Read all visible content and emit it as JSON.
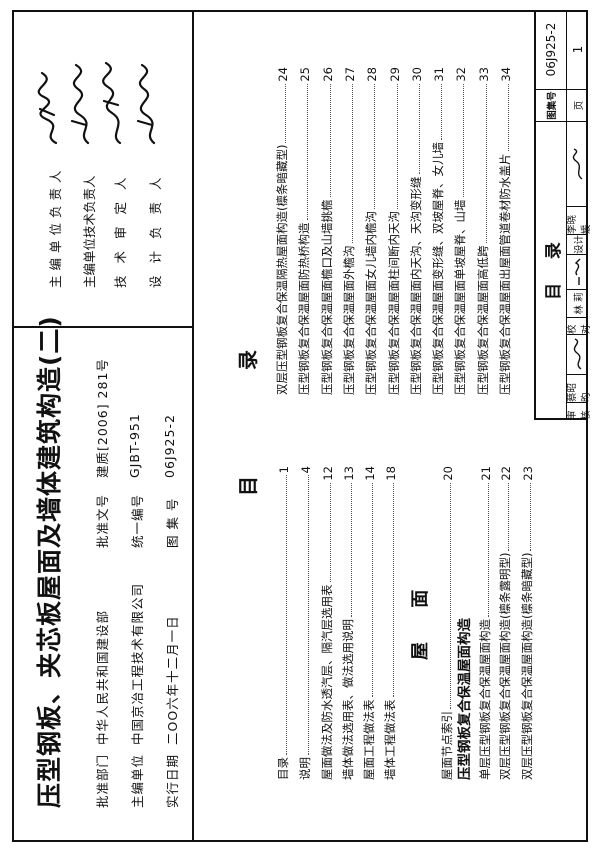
{
  "cover": {
    "title": "压型钢板、夹芯板屋面及墙体建筑构造(二)",
    "info": [
      {
        "label": "批准部门",
        "value": "中华人民共和国建设部"
      },
      {
        "label": "主编单位",
        "value": "中国京冶工程技术有限公司"
      },
      {
        "label": "实行日期",
        "value": "二OO六年十二月一日"
      }
    ],
    "info_right": [
      {
        "label": "批准文号",
        "value": "建质[2006] 281号"
      },
      {
        "label": "统一编号",
        "value": "GJBT-951"
      },
      {
        "label": "图 集 号",
        "value": "06J925-2"
      }
    ]
  },
  "signatures": {
    "roles": [
      "主编单位负责人",
      "主编单位技术负责人",
      "技术审定人",
      "设计负责人"
    ]
  },
  "toc": {
    "heading_left": "目",
    "heading_right": "录",
    "left_column": [
      {
        "text": "目录",
        "page": "1"
      },
      {
        "text": "说明",
        "page": "4"
      },
      {
        "text": "屋面做法及防水透汽层、隔汽层选用表",
        "page": "12"
      },
      {
        "text": "墙体做法选用表、做法选用说明",
        "page": "13"
      },
      {
        "text": "屋面工程做法表",
        "page": "14"
      },
      {
        "text": "墙体工程做法表",
        "page": "18"
      }
    ],
    "section_heading": "屋 面",
    "left_column_2": [
      {
        "text": "屋面节点索引",
        "page": "20"
      },
      {
        "text": "压型钢板复合保温屋面构造",
        "page": ""
      },
      {
        "text": "单层压型钢板复合保温屋面构造",
        "page": "21"
      },
      {
        "text": "双层压型钢板复合保温屋面构造(檩条露明型)",
        "page": "22"
      },
      {
        "text": "双层压型钢板复合保温屋面构造(檩条暗藏型)",
        "page": "23"
      }
    ],
    "right_column": [
      {
        "text": "双层压型钢板复合保温隔热屋面构造(檩条暗藏型)",
        "page": "24"
      },
      {
        "text": "压型钢板复合保温屋面防热桥构造",
        "page": "25"
      },
      {
        "text": "压型钢板复合保温屋面檐口及山墙挑檐",
        "page": "26"
      },
      {
        "text": "压型钢板复合保温屋面外檐沟",
        "page": "27"
      },
      {
        "text": "压型钢板复合保温屋面女儿墙内檐沟",
        "page": "28"
      },
      {
        "text": "压型钢板复合保温屋面柱间断内天沟",
        "page": "29"
      },
      {
        "text": "压型钢板复合保温屋面内天沟、天沟变形缝",
        "page": "30"
      },
      {
        "text": "压型钢板复合保温屋面变形缝、双坡屋脊、女儿墙",
        "page": "31"
      },
      {
        "text": "压型钢板复合保温屋面单坡屋脊、山墙",
        "page": "32"
      },
      {
        "text": "压型钢板复合保温屋面高低跨",
        "page": "33"
      },
      {
        "text": "压型钢板复合保温屋面出屋面管道卷材防水盖片",
        "page": "34"
      }
    ]
  },
  "title_block": {
    "title": "目    录",
    "atlas_label": "图集号",
    "atlas_no": "06J925-2",
    "page_label": "页",
    "page_no": "1",
    "review_label": "审核",
    "reviewer": "蔡昭昀",
    "check_label": "校对",
    "checker": "林 莉",
    "design_label": "设计",
    "designer": "李晓媛"
  }
}
